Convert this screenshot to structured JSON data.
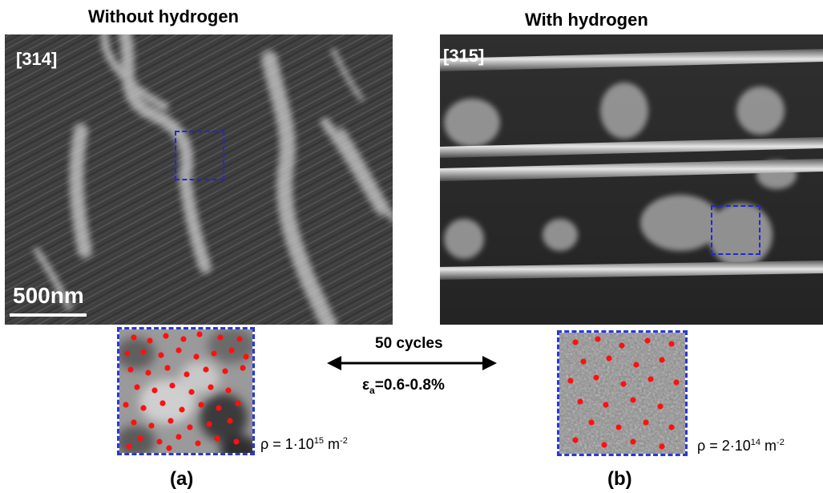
{
  "left": {
    "heading": "Without hydrogen",
    "ref": "[314]",
    "scale": "500nm",
    "density_prefix": "ρ = 1·10",
    "density_exp": "15",
    "density_unit": " m",
    "density_unit_exp": "-2",
    "panel": "(a)"
  },
  "right": {
    "heading": "With hydrogen",
    "ref": "[315]",
    "density_prefix": "ρ = 2·10",
    "density_exp": "14",
    "density_unit": " m",
    "density_unit_exp": "-2",
    "panel": "(b)"
  },
  "center": {
    "cycles": "50 cycles",
    "strain_symbol": "ε",
    "strain_sub": "a",
    "strain_value": "=0.6-0.8%"
  },
  "colors": {
    "roi": "#2226d6",
    "dots": "#ff1010"
  }
}
